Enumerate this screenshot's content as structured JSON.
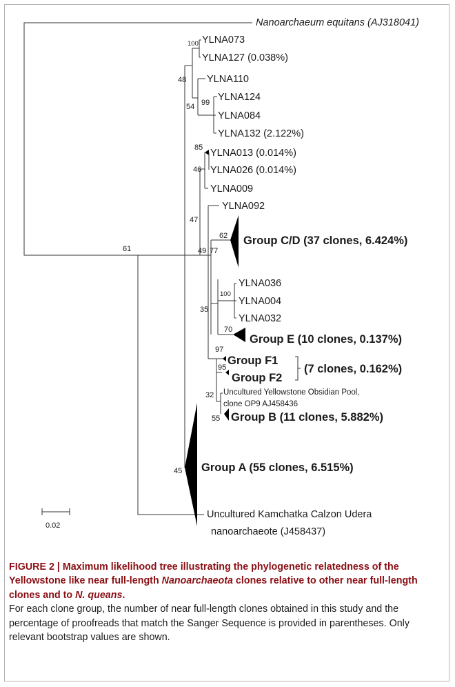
{
  "figure": {
    "outgroup_label": "Nanoarchaeum equitans (AJ318041)",
    "leaves": {
      "ylna073": "YLNA073",
      "ylna127": "YLNA127 (0.038%)",
      "ylna110": "YLNA110",
      "ylna124": "YLNA124",
      "ylna084": "YLNA084",
      "ylna132": "YLNA132 (2.122%)",
      "ylna013": "YLNA013 (0.014%)",
      "ylna026": "YLNA026 (0.014%)",
      "ylna009": "YLNA009",
      "ylna092": "YLNA092",
      "ylna036": "YLNA036",
      "ylna004": "YLNA004",
      "ylna032": "YLNA032",
      "obsidian_line1": "Uncultured Yellowstone Obsidian Pool,",
      "obsidian_line2": "clone OP9 AJ458436",
      "kamchatka_line1": "Uncultured Kamchatka Calzon Udera",
      "kamchatka_line2": "nanoarchaeote (J458437)"
    },
    "groups": {
      "cd": "Group C/D (37 clones, 6.424%)",
      "e": "Group E (10 clones, 0.137%)",
      "f1": "Group F1",
      "f2": "Group F2",
      "f_summary": "(7 clones, 0.162%)",
      "b": "Group B (11 clones, 5.882%)",
      "a": "Group A (55 clones, 6.515%)"
    },
    "bootstrap": {
      "b100a": "100",
      "b48": "48",
      "b54": "54",
      "b99": "99",
      "b85": "85",
      "b46": "46",
      "b47": "47",
      "b62": "62",
      "b49": "49",
      "b77": "77",
      "b100b": "100",
      "b70": "70",
      "b35": "35",
      "b97": "97",
      "b95": "95",
      "b32": "32",
      "b55": "55",
      "b61": "61",
      "b45": "45"
    },
    "scale_bar_label": "0.02"
  },
  "caption": {
    "label": "FIGURE 2 | ",
    "title_part1": "Maximum likelihood tree illustrating the phylogenetic relatedness of the Yellowstone like near full-length ",
    "title_italic1": "Nanoarchaeota",
    "title_part2": " clones relative to other near full-length clones and to ",
    "title_italic2": "N. queans",
    "title_end": ".",
    "body": "For each clone group, the number of near full-length clones obtained in this study and the percentage of proofreads that match the Sanger Sequence is provided in parentheses. Only relevant bootstrap values are shown."
  }
}
